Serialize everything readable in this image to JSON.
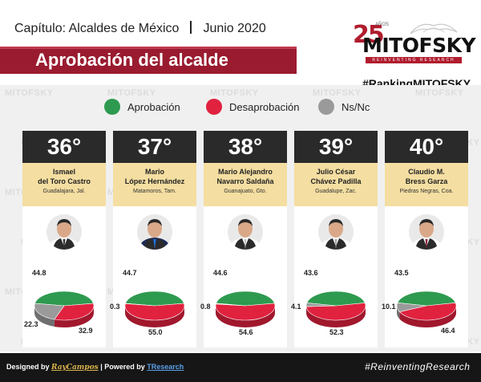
{
  "header": {
    "chapter": "Capítulo: Alcaldes de México",
    "date": "Junio 2020",
    "title": "Aprobación del alcalde"
  },
  "logo": {
    "years": "25",
    "years_small": "AÑOS",
    "brand": "MITOFSKY",
    "tagline": "REINVENTING RESEARCH"
  },
  "hashtag": "#RankingMITOFSKY",
  "watermark": "MITOFSKY",
  "legend": [
    {
      "label": "Aprobación",
      "color": "#2e9a4f"
    },
    {
      "label": "Desaprobación",
      "color": "#e0223f"
    },
    {
      "label": "Ns/Nc",
      "color": "#9a9a9a"
    }
  ],
  "colors": {
    "approval": "#2e9a4f",
    "disapproval": "#e0223f",
    "nsnc": "#9a9a9a",
    "accent": "#9a1b2f"
  },
  "chart_data": {
    "type": "pie",
    "series_names": [
      "Aprobación",
      "Desaprobación",
      "Ns/Nc"
    ],
    "mayors": [
      {
        "rank": "36°",
        "name": "Ismael\ndel Toro Castro",
        "place": "Guadalajara, Jal.",
        "approval": 44.8,
        "disapproval": 32.9,
        "nsnc": 22.3,
        "labels": {
          "approval": "44.8",
          "disapproval": "32.9",
          "nsnc": "22.3"
        }
      },
      {
        "rank": "37°",
        "name": "Mario\nLópez Hernández",
        "place": "Matamoros, Tam.",
        "approval": 44.7,
        "disapproval": 55.0,
        "nsnc": 0.3,
        "labels": {
          "approval": "44.7",
          "disapproval": "55.0",
          "nsnc": "0.3"
        }
      },
      {
        "rank": "38°",
        "name": "Mario Alejandro\nNavarro Saldaña",
        "place": "Guanajuato, Gto.",
        "approval": 44.6,
        "disapproval": 54.6,
        "nsnc": 0.8,
        "labels": {
          "approval": "44.6",
          "disapproval": "54.6",
          "nsnc": "0.8"
        }
      },
      {
        "rank": "39°",
        "name": "Julio César\nChávez Padilla",
        "place": "Guadalupe, Zac.",
        "approval": 43.6,
        "disapproval": 52.3,
        "nsnc": 4.1,
        "labels": {
          "approval": "43.6",
          "disapproval": "52.3",
          "nsnc": "4.1"
        }
      },
      {
        "rank": "40°",
        "name": "Claudio M.\nBress Garza",
        "place": "Piedras Negras, Coa.",
        "approval": 43.5,
        "disapproval": 46.4,
        "nsnc": 10.1,
        "labels": {
          "approval": "43.5",
          "disapproval": "46.4",
          "nsnc": "10.1"
        }
      }
    ]
  },
  "footer": {
    "designed_by": "Designed by",
    "designer": "RayCampos",
    "separator": "|",
    "powered_by": "Powered by",
    "powered_name": "TResearch",
    "tag": "#ReinventingResearch"
  }
}
